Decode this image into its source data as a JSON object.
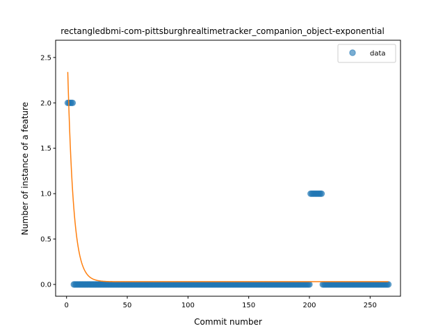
{
  "chart_data": {
    "type": "scatter",
    "title": "rectangledbmi-com-pittsburghrealtimetracker_companion_object-exponential",
    "xlabel": "Commit number",
    "ylabel": "Number of instance of a feature",
    "xlim": [
      -9,
      275
    ],
    "ylim": [
      -0.13,
      2.69
    ],
    "xticks": [
      0,
      50,
      100,
      150,
      200,
      250
    ],
    "yticks": [
      0.0,
      0.5,
      1.0,
      1.5,
      2.0,
      2.5
    ],
    "xtick_labels": [
      "0",
      "50",
      "100",
      "150",
      "200",
      "250"
    ],
    "ytick_labels": [
      "0.0",
      "0.5",
      "1.0",
      "1.5",
      "2.0",
      "2.5"
    ],
    "legend": {
      "position": "top-right",
      "entries": [
        "data"
      ]
    },
    "grid": false,
    "series": [
      {
        "name": "data",
        "kind": "scatter",
        "color": "#1f77b4",
        "segments": [
          {
            "x_start": 1,
            "x_end": 5,
            "y": 2
          },
          {
            "x_start": 6,
            "x_end": 200,
            "y": 0
          },
          {
            "x_start": 201,
            "x_end": 210,
            "y": 1
          },
          {
            "x_start": 211,
            "x_end": 265,
            "y": 0
          }
        ]
      },
      {
        "kind": "line",
        "color": "#ff7f0e",
        "model": "exponential",
        "a": 2.85,
        "b": 0.21,
        "c": 0.03,
        "x_range": [
          1,
          265
        ]
      }
    ]
  }
}
